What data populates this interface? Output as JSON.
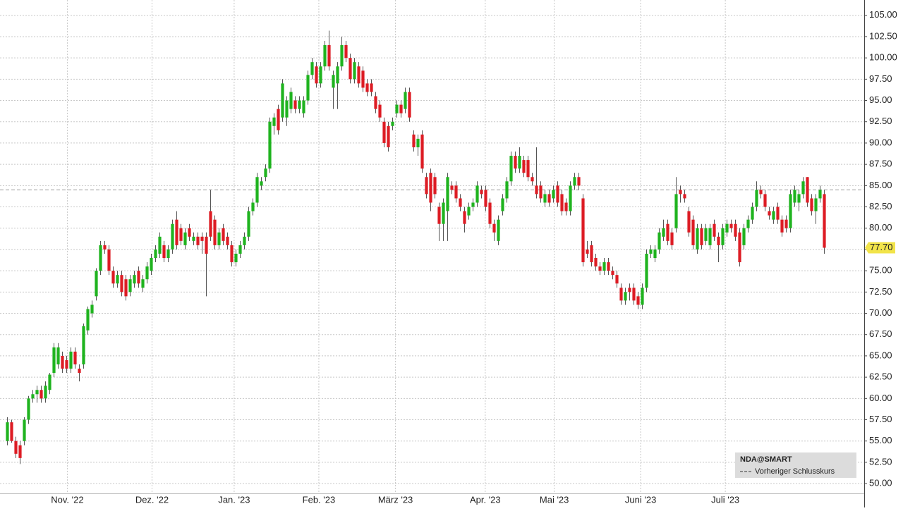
{
  "chart_data": {
    "type": "candlestick",
    "legend_title": "NDA@SMART",
    "up_color": "#1fb31f",
    "down_color": "#dd1c24",
    "xlim": [
      -1.6,
      202.5
    ],
    "xticks": [
      {
        "value": 14.3,
        "label": "Nov. '22"
      },
      {
        "value": 34.3,
        "label": "Dez. '22"
      },
      {
        "value": 53.7,
        "label": "Jan. '23"
      },
      {
        "value": 73.7,
        "label": "Feb. '23"
      },
      {
        "value": 91.8,
        "label": "März '23"
      },
      {
        "value": 113,
        "label": "Apr. '23"
      },
      {
        "value": 129.3,
        "label": "Mai '23"
      },
      {
        "value": 149.7,
        "label": "Juni '23"
      },
      {
        "value": 169.7,
        "label": "Juli '23"
      }
    ],
    "ylim": [
      48.85,
      106.8
    ],
    "yticks": [
      {
        "value": 50,
        "label": "50.00"
      },
      {
        "value": 52.5,
        "label": "52.50"
      },
      {
        "value": 55,
        "label": "55.00"
      },
      {
        "value": 57.5,
        "label": "57.50"
      },
      {
        "value": 60,
        "label": "60.00"
      },
      {
        "value": 62.5,
        "label": "62.50"
      },
      {
        "value": 65,
        "label": "65.00"
      },
      {
        "value": 67.5,
        "label": "67.50"
      },
      {
        "value": 70,
        "label": "70.00"
      },
      {
        "value": 72.5,
        "label": "72.50"
      },
      {
        "value": 75,
        "label": "75.00"
      },
      {
        "value": 77.5,
        "label": "77.50"
      },
      {
        "value": 80,
        "label": "80.00"
      },
      {
        "value": 82.5,
        "label": "82.50"
      },
      {
        "value": 85,
        "label": "85.00"
      },
      {
        "value": 87.5,
        "label": "87.50"
      },
      {
        "value": 90,
        "label": "90.00"
      },
      {
        "value": 92.5,
        "label": "92.50"
      },
      {
        "value": 95,
        "label": "95.00"
      },
      {
        "value": 97.5,
        "label": "97.50"
      },
      {
        "value": 100,
        "label": "100.00"
      },
      {
        "value": 102.5,
        "label": "102.50"
      },
      {
        "value": 105,
        "label": "105.00"
      }
    ],
    "grid": true,
    "reference_line": {
      "name": "Vorheriger Schlusskurs",
      "value": 84.5,
      "color": "#999999"
    },
    "last_price": {
      "value": 77.7,
      "label": "77.70",
      "color": "#f2e44a"
    },
    "candles": [
      [
        55,
        57.8,
        54.5,
        57.2
      ],
      [
        57.2,
        57.5,
        54.8,
        55
      ],
      [
        55,
        55.5,
        53,
        53.5
      ],
      [
        54.5,
        55,
        52.3,
        53
      ],
      [
        55,
        57.8,
        54.5,
        57.5
      ],
      [
        57.5,
        60.3,
        57,
        60
      ],
      [
        60,
        61,
        59.5,
        60.5
      ],
      [
        60.5,
        61.5,
        59.5,
        61
      ],
      [
        61,
        61.5,
        59.5,
        60
      ],
      [
        60,
        62,
        59.5,
        61.5
      ],
      [
        61,
        63,
        60.5,
        62.8
      ],
      [
        63,
        66.5,
        62.5,
        66
      ],
      [
        64,
        66.5,
        63.5,
        66
      ],
      [
        65,
        65.5,
        63,
        63.5
      ],
      [
        64.5,
        65,
        63,
        63.5
      ],
      [
        63.5,
        66,
        63,
        65.5
      ],
      [
        65.5,
        66,
        63.5,
        64
      ],
      [
        63.5,
        64,
        62,
        63
      ],
      [
        64,
        68.8,
        63.5,
        68.5
      ],
      [
        68,
        70.8,
        67.5,
        70.5
      ],
      [
        70,
        71.5,
        69.5,
        71
      ],
      [
        72,
        75.3,
        71.5,
        75
      ],
      [
        75,
        78.5,
        74.5,
        78
      ],
      [
        78,
        78.5,
        77,
        77.5
      ],
      [
        77.5,
        78,
        74.5,
        75
      ],
      [
        75,
        75.5,
        73,
        73.5
      ],
      [
        73.5,
        75,
        73,
        74.5
      ],
      [
        74.5,
        75,
        72,
        72.5
      ],
      [
        74,
        74.5,
        71.5,
        72
      ],
      [
        72.5,
        74.5,
        72,
        74
      ],
      [
        73.5,
        75,
        73,
        74.5
      ],
      [
        75,
        75.5,
        73,
        73.5
      ],
      [
        73,
        74.5,
        72.5,
        74
      ],
      [
        74,
        76,
        73.5,
        75.5
      ],
      [
        75,
        77,
        74.5,
        76.5
      ],
      [
        76.5,
        78,
        76,
        77.5
      ],
      [
        77,
        79.5,
        76.5,
        79
      ],
      [
        78,
        78.5,
        76,
        76.5
      ],
      [
        76.5,
        78,
        76,
        77.5
      ],
      [
        77.5,
        81,
        77,
        80.5
      ],
      [
        81,
        82,
        77.5,
        78
      ],
      [
        80,
        80.5,
        78,
        78.5
      ],
      [
        78,
        80,
        77.5,
        79.5
      ],
      [
        80,
        80.5,
        78.5,
        79
      ],
      [
        78.5,
        79.5,
        78,
        79
      ],
      [
        79,
        79.5,
        77.5,
        78
      ],
      [
        79,
        79.5,
        77,
        78.5
      ],
      [
        79,
        79.5,
        72,
        77
      ],
      [
        82,
        84.5,
        78.5,
        79
      ],
      [
        81,
        81.5,
        77.5,
        78
      ],
      [
        78,
        80,
        77.5,
        79.5
      ],
      [
        80,
        80.5,
        78,
        78.5
      ],
      [
        79,
        79.5,
        77.5,
        78
      ],
      [
        78,
        78.5,
        75.5,
        76
      ],
      [
        76,
        77.5,
        75.5,
        77
      ],
      [
        77,
        78.5,
        76.5,
        78
      ],
      [
        78,
        79.5,
        77.5,
        79
      ],
      [
        79,
        82.5,
        78.5,
        82
      ],
      [
        82,
        83.5,
        81.5,
        83
      ],
      [
        83,
        86.5,
        82.5,
        86
      ],
      [
        85,
        86,
        84.5,
        85.5
      ],
      [
        86,
        87.5,
        85.5,
        87
      ],
      [
        87,
        93,
        86.5,
        92.5
      ],
      [
        92,
        93.5,
        91,
        93
      ],
      [
        94,
        94.5,
        91,
        91.5
      ],
      [
        93,
        97.5,
        92.5,
        97
      ],
      [
        93,
        95.5,
        92,
        95
      ],
      [
        94,
        96.5,
        93.5,
        96
      ],
      [
        95,
        95.5,
        93.5,
        94
      ],
      [
        94,
        95.5,
        93.5,
        95
      ],
      [
        93.5,
        95.5,
        93,
        95
      ],
      [
        95,
        98.5,
        94.5,
        98
      ],
      [
        98,
        100,
        97.5,
        99.5
      ],
      [
        99,
        99.5,
        96.5,
        97
      ],
      [
        97,
        99.5,
        96.5,
        99
      ],
      [
        99,
        102,
        98.5,
        101.5
      ],
      [
        101.5,
        103.2,
        98.5,
        99
      ],
      [
        96.5,
        98.5,
        94,
        98
      ],
      [
        97,
        99.5,
        94,
        99
      ],
      [
        99,
        102.5,
        98.5,
        101.5
      ],
      [
        101.5,
        102,
        99.5,
        100
      ],
      [
        100,
        100.5,
        97,
        97.5
      ],
      [
        97.5,
        100,
        97,
        99.5
      ],
      [
        99,
        99.5,
        96.5,
        97
      ],
      [
        98.5,
        99,
        96,
        96.5
      ],
      [
        97,
        97.5,
        95.5,
        96
      ],
      [
        97,
        97.5,
        95.5,
        96
      ],
      [
        95.5,
        96,
        93.5,
        94
      ],
      [
        94.5,
        95,
        92.5,
        93
      ],
      [
        92.5,
        93,
        89.5,
        90
      ],
      [
        92,
        92.5,
        89,
        89.5
      ],
      [
        92,
        93,
        91.5,
        92.5
      ],
      [
        93.5,
        95,
        93,
        94.5
      ],
      [
        94.5,
        95,
        93,
        93.5
      ],
      [
        94,
        96.5,
        93.5,
        96
      ],
      [
        96,
        96.5,
        92.5,
        93
      ],
      [
        91,
        91.5,
        89,
        89.5
      ],
      [
        89.5,
        91,
        88.5,
        90.5
      ],
      [
        91,
        91.5,
        86.5,
        87
      ],
      [
        86,
        86.5,
        83.5,
        84
      ],
      [
        86.5,
        87,
        82,
        83
      ],
      [
        86,
        86.5,
        83.5,
        84
      ],
      [
        82.5,
        83,
        78.5,
        80.5
      ],
      [
        80.5,
        83.5,
        78.5,
        83
      ],
      [
        82,
        86.5,
        78.5,
        86
      ],
      [
        85,
        85.5,
        84,
        84.5
      ],
      [
        85,
        85.5,
        83,
        83.5
      ],
      [
        83.5,
        84,
        82,
        82.5
      ],
      [
        82,
        82.5,
        79.5,
        80.5
      ],
      [
        81.5,
        83,
        81,
        82.5
      ],
      [
        82.5,
        83.5,
        82,
        83
      ],
      [
        83,
        85.5,
        82.5,
        85
      ],
      [
        84.5,
        85,
        83.5,
        84
      ],
      [
        84.5,
        85,
        82,
        82.5
      ],
      [
        83,
        83.5,
        80,
        80.5
      ],
      [
        80.5,
        81,
        78.5,
        79.5
      ],
      [
        78.5,
        81.5,
        78,
        81
      ],
      [
        82,
        84,
        81.5,
        83.5
      ],
      [
        83.5,
        86,
        83,
        85.5
      ],
      [
        85.5,
        89,
        85,
        88.5
      ],
      [
        88.5,
        89,
        86.5,
        87
      ],
      [
        87,
        89.5,
        86.5,
        88.5
      ],
      [
        88,
        88.5,
        86,
        86.5
      ],
      [
        88,
        88.5,
        85.5,
        86
      ],
      [
        86,
        86.5,
        85,
        85.5
      ],
      [
        85,
        89.5,
        83.5,
        84
      ],
      [
        85,
        85.5,
        83,
        83.5
      ],
      [
        83,
        84.5,
        82.5,
        84
      ],
      [
        84,
        84.5,
        82.5,
        83
      ],
      [
        83.5,
        85,
        83,
        84.5
      ],
      [
        85,
        85.5,
        82.5,
        83
      ],
      [
        84,
        84.5,
        81.5,
        82
      ],
      [
        83,
        83.5,
        81.5,
        82
      ],
      [
        82,
        85.5,
        81.5,
        85
      ],
      [
        85,
        86.5,
        84.5,
        86
      ],
      [
        86,
        86.5,
        84.5,
        85
      ],
      [
        83.5,
        84,
        75.5,
        76
      ],
      [
        77.5,
        78.5,
        76.5,
        77
      ],
      [
        78,
        78.5,
        75.5,
        76
      ],
      [
        76.5,
        77,
        75,
        75.5
      ],
      [
        75.5,
        76,
        74.5,
        75
      ],
      [
        75,
        76.5,
        74.5,
        76
      ],
      [
        76,
        76.5,
        74.5,
        75
      ],
      [
        75,
        75.5,
        74,
        74.5
      ],
      [
        74.5,
        75,
        73,
        73.5
      ],
      [
        73,
        73.5,
        71,
        71.5
      ],
      [
        71.5,
        73,
        71,
        72.5
      ],
      [
        73,
        73.5,
        71.5,
        72.5
      ],
      [
        73,
        73.5,
        71,
        71.5
      ],
      [
        72,
        72.5,
        70.5,
        71
      ],
      [
        71,
        73.5,
        70.5,
        73
      ],
      [
        73,
        77.5,
        72.5,
        77
      ],
      [
        77,
        78,
        76.5,
        77.5
      ],
      [
        76.5,
        78,
        76,
        77.5
      ],
      [
        77.5,
        80,
        77,
        79.5
      ],
      [
        79,
        81,
        78.5,
        80
      ],
      [
        80.5,
        81,
        78,
        78.5
      ],
      [
        79.5,
        80,
        77.5,
        78
      ],
      [
        80,
        86,
        79.5,
        84
      ],
      [
        84.5,
        85,
        83,
        84
      ],
      [
        84,
        84.5,
        83,
        83.5
      ],
      [
        82,
        82.5,
        79,
        79.5
      ],
      [
        81,
        81.5,
        77.5,
        78
      ],
      [
        77.5,
        80.5,
        77,
        80
      ],
      [
        80,
        80.5,
        77.5,
        78
      ],
      [
        78.5,
        80.5,
        78,
        80
      ],
      [
        78,
        80.5,
        77.5,
        80
      ],
      [
        80.5,
        81,
        78.5,
        79
      ],
      [
        79,
        79.5,
        76,
        78
      ],
      [
        78,
        80.5,
        77.5,
        80
      ],
      [
        79.5,
        81,
        79,
        80.5
      ],
      [
        80.5,
        81,
        79.5,
        80
      ],
      [
        80.5,
        81,
        78.5,
        79
      ],
      [
        79.5,
        80,
        75.5,
        76
      ],
      [
        78,
        80.5,
        77.5,
        80
      ],
      [
        80,
        81.5,
        79.5,
        81
      ],
      [
        81,
        83,
        80.5,
        82.5
      ],
      [
        82.5,
        85.5,
        82,
        84.5
      ],
      [
        84.5,
        85,
        83.5,
        84
      ],
      [
        84,
        84.5,
        82,
        82.5
      ],
      [
        82,
        82.5,
        81,
        81.5
      ],
      [
        81,
        82.5,
        80.5,
        82
      ],
      [
        82.5,
        83,
        80.5,
        81
      ],
      [
        81,
        81.5,
        79,
        79.5
      ],
      [
        81,
        81.5,
        79.5,
        80
      ],
      [
        80,
        84.5,
        79.5,
        84
      ],
      [
        83,
        85,
        82.5,
        84.5
      ],
      [
        83,
        84.5,
        82,
        84
      ],
      [
        84,
        86,
        83.5,
        85.5
      ],
      [
        86,
        86,
        82.5,
        83
      ],
      [
        83.5,
        84,
        81.5,
        82
      ],
      [
        82,
        84,
        80.5,
        83.5
      ],
      [
        83.5,
        85,
        83,
        84.5
      ],
      [
        84,
        84.5,
        77,
        77.7
      ]
    ]
  }
}
